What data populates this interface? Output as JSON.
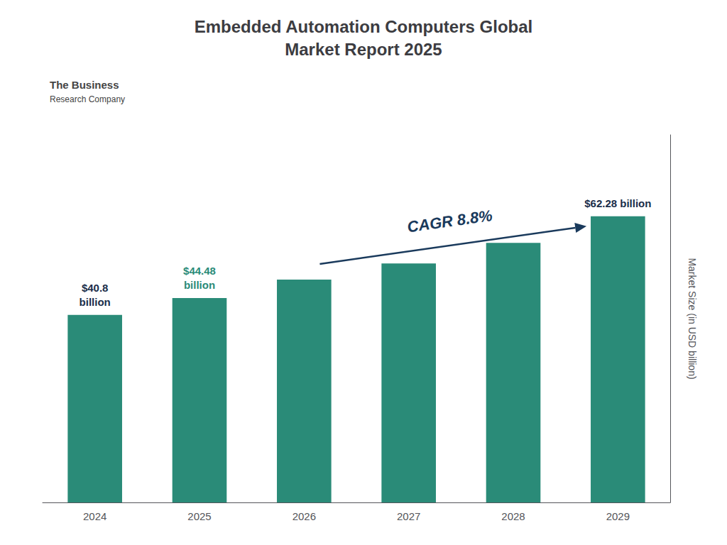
{
  "chart_data": {
    "type": "bar",
    "title": "Embedded Automation Computers Global\nMarket Report 2025",
    "categories": [
      "2024",
      "2025",
      "2026",
      "2027",
      "2028",
      "2029"
    ],
    "values": [
      40.8,
      44.48,
      48.5,
      52.0,
      56.5,
      62.28
    ],
    "color": "#2a8b78",
    "ylabel": "Market Size (in USD billion)",
    "ylim": [
      0,
      80
    ],
    "yticks": [],
    "grid": false,
    "tick_labels": "x",
    "annotations": [
      {
        "text": "$40.8\nbillion",
        "category": "2024",
        "color": "#1a2e4a"
      },
      {
        "text": "$44.48\nbillion",
        "category": "2025",
        "color": "#2a8b78"
      },
      {
        "text": "$62.28 billion",
        "category": "2029",
        "color": "#1a2e4a"
      },
      {
        "text": "CAGR 8.8%",
        "from": "2026",
        "to": "2029",
        "color": "#1a3a5c"
      },
      {
        "text": "The Business"
      },
      {
        "text": "Research Company"
      }
    ]
  }
}
